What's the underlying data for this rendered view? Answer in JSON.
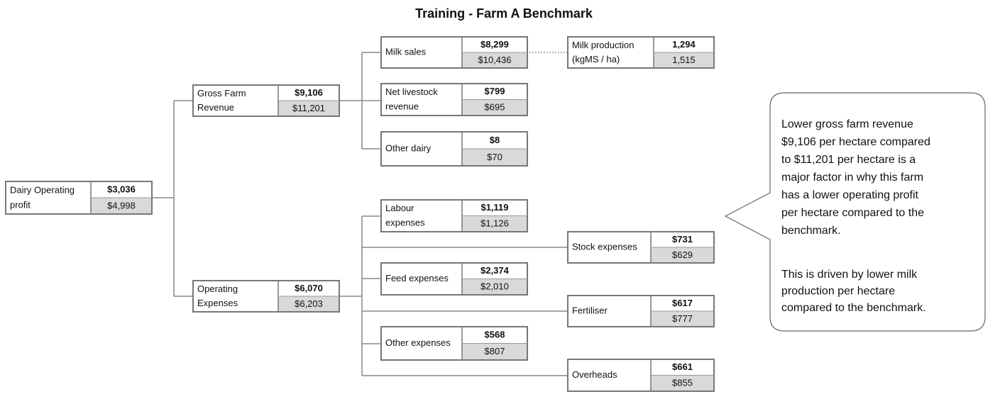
{
  "title": "Training - Farm A Benchmark",
  "nodes": [
    {
      "label": [
        "Dairy Operating",
        "profit"
      ],
      "value": "$3,036",
      "benchmark": "$4,998"
    },
    {
      "label": [
        "Gross Farm",
        "Revenue"
      ],
      "value": "$9,106",
      "benchmark": "$11,201"
    },
    {
      "label": [
        "Operating",
        "Expenses"
      ],
      "value": "$6,070",
      "benchmark": "$6,203"
    },
    {
      "label": [
        "Milk sales"
      ],
      "value": "$8,299",
      "benchmark": "$10,436"
    },
    {
      "label": [
        "Net livestock",
        "revenue"
      ],
      "value": "$799",
      "benchmark": "$695"
    },
    {
      "label": [
        "Other dairy"
      ],
      "value": "$8",
      "benchmark": "$70"
    },
    {
      "label": [
        "Labour",
        "expenses"
      ],
      "value": "$1,119",
      "benchmark": "$1,126"
    },
    {
      "label": [
        "Feed expenses"
      ],
      "value": "$2,374",
      "benchmark": "$2,010"
    },
    {
      "label": [
        "Other expenses"
      ],
      "value": "$568",
      "benchmark": "$807"
    },
    {
      "label": [
        "Milk production",
        "(kgMS / ha)"
      ],
      "value": "1,294",
      "benchmark": "1,515"
    },
    {
      "label": [
        "Stock expenses"
      ],
      "value": "$731",
      "benchmark": "$629"
    },
    {
      "label": [
        "Fertiliser"
      ],
      "value": "$617",
      "benchmark": "$777"
    },
    {
      "label": [
        "Overheads"
      ],
      "value": "$661",
      "benchmark": "$855"
    }
  ],
  "callout": {
    "paragraphs": [
      [
        "Lower gross farm revenue",
        "$9,106 per hectare compared",
        "to $11,201 per hectare is a",
        "major factor in why this farm",
        "has a lower operating profit",
        "per hectare compared to the",
        "benchmark."
      ],
      [
        "This is driven by lower milk",
        "production per hectare",
        "compared to the benchmark."
      ]
    ]
  }
}
